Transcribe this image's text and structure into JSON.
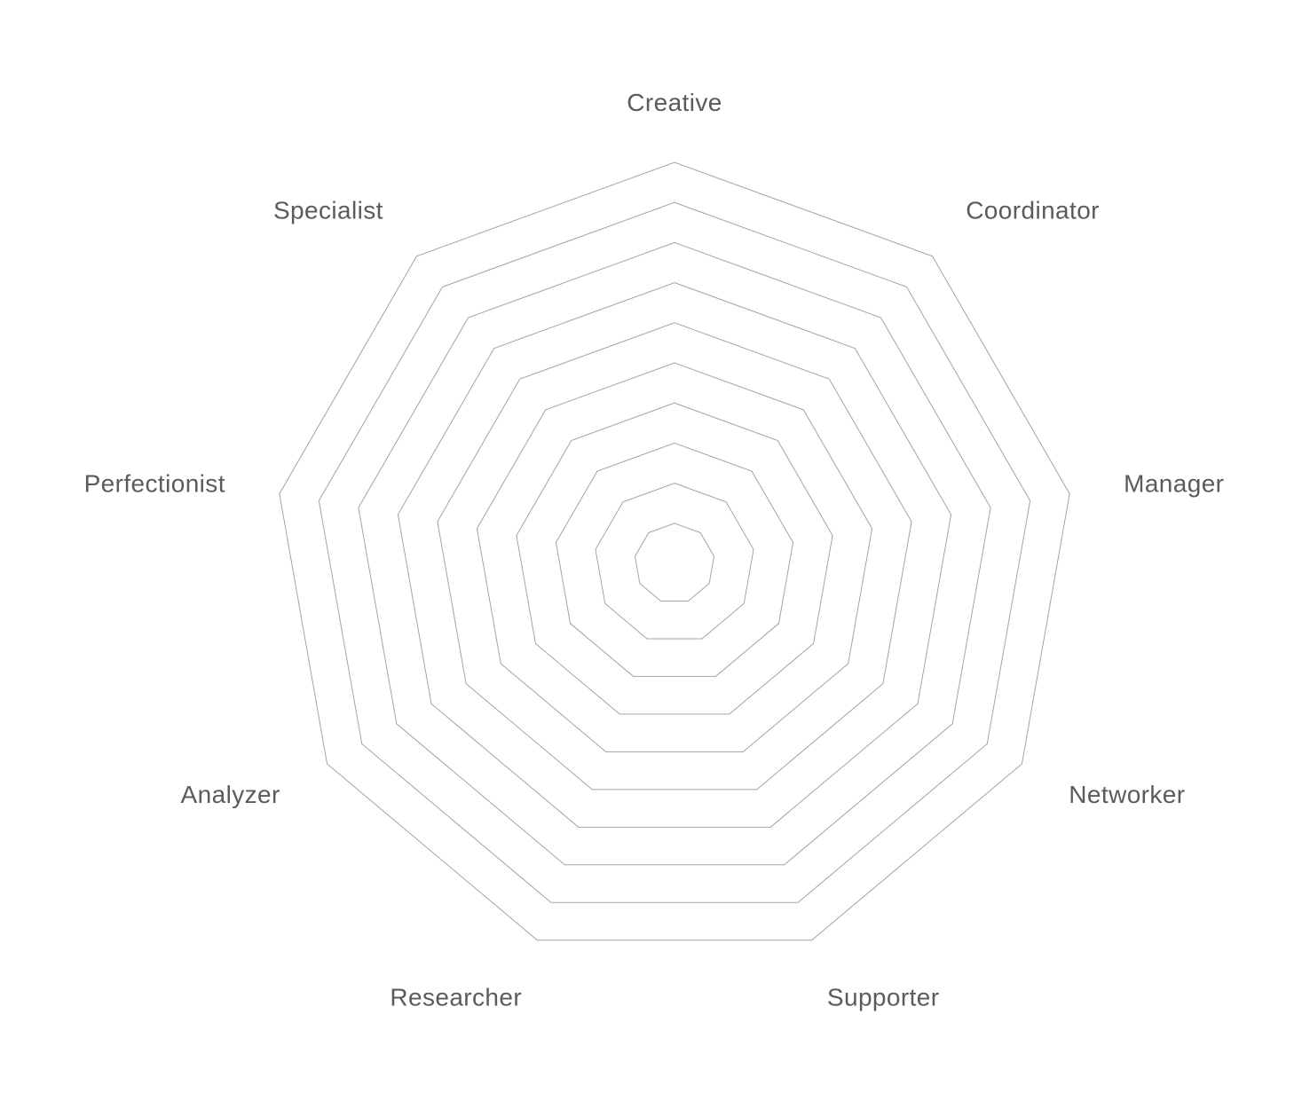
{
  "chart_data": {
    "type": "radar",
    "title": "",
    "axes": [
      "Creative",
      "Coordinator",
      "Manager",
      "Networker",
      "Supporter",
      "Researcher",
      "Analyzer",
      "Perfectionist",
      "Specialist"
    ],
    "rings": 10,
    "grid": true,
    "series": []
  }
}
